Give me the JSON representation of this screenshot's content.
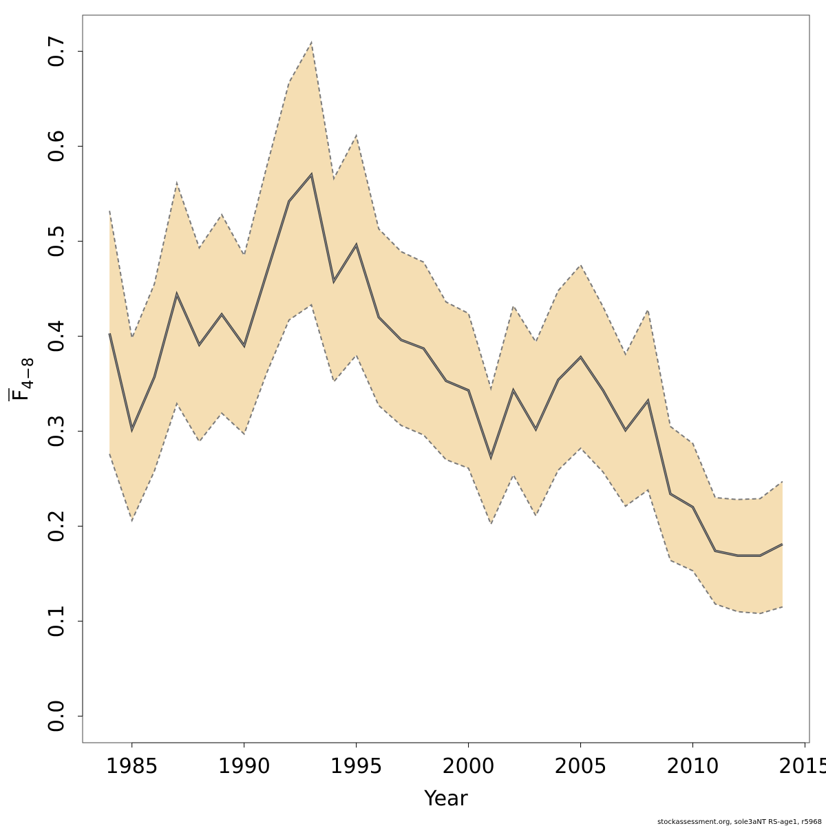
{
  "chart_data": {
    "type": "line",
    "xlabel": "Year",
    "ylabel": "F",
    "ylabel_subscript": "4−8",
    "xlim": [
      1982.8,
      2015.2
    ],
    "ylim": [
      -0.028,
      0.738
    ],
    "x_ticks": [
      1985,
      1990,
      1995,
      2000,
      2005,
      2010,
      2015
    ],
    "y_ticks": [
      0.0,
      0.1,
      0.2,
      0.3,
      0.4,
      0.5,
      0.6,
      0.7
    ],
    "y_tick_labels": [
      "0.0",
      "0.1",
      "0.2",
      "0.3",
      "0.4",
      "0.5",
      "0.6",
      "0.7"
    ],
    "grid": false,
    "series": [
      {
        "x": [
          1984,
          1985,
          1986,
          1987,
          1988,
          1989,
          1990,
          1991,
          1992,
          1993,
          1994,
          1995,
          1996,
          1997,
          1998,
          1999,
          2000,
          2001,
          2002,
          2003,
          2004,
          2005,
          2006,
          2007,
          2008,
          2009,
          2010,
          2011,
          2012,
          2013,
          2014
        ],
        "values": [
          0.403,
          0.302,
          0.357,
          0.444,
          0.391,
          0.423,
          0.39,
          0.466,
          0.542,
          0.57,
          0.458,
          0.496,
          0.42,
          0.396,
          0.387,
          0.353,
          0.343,
          0.273,
          0.343,
          0.302,
          0.354,
          0.378,
          0.343,
          0.301,
          0.332,
          0.234,
          0.22,
          0.174,
          0.169,
          0.169,
          0.181
        ],
        "lower": [
          0.276,
          0.206,
          0.258,
          0.329,
          0.289,
          0.319,
          0.297,
          0.361,
          0.417,
          0.433,
          0.352,
          0.38,
          0.327,
          0.306,
          0.296,
          0.27,
          0.261,
          0.202,
          0.254,
          0.211,
          0.259,
          0.282,
          0.257,
          0.221,
          0.238,
          0.164,
          0.153,
          0.118,
          0.11,
          0.108,
          0.115
        ],
        "upper": [
          0.532,
          0.398,
          0.455,
          0.561,
          0.493,
          0.528,
          0.485,
          0.578,
          0.667,
          0.709,
          0.566,
          0.611,
          0.513,
          0.489,
          0.478,
          0.436,
          0.424,
          0.345,
          0.432,
          0.394,
          0.448,
          0.475,
          0.431,
          0.381,
          0.428,
          0.305,
          0.287,
          0.23,
          0.228,
          0.229,
          0.247
        ]
      }
    ]
  },
  "colors": {
    "band": "#f5deb3",
    "band_edge": "#7a7a7a",
    "line": "#404040",
    "axis": "#000000",
    "box": "#444444"
  },
  "footer": "stockassessment.org, sole3aNT  RS-age1, r5968"
}
